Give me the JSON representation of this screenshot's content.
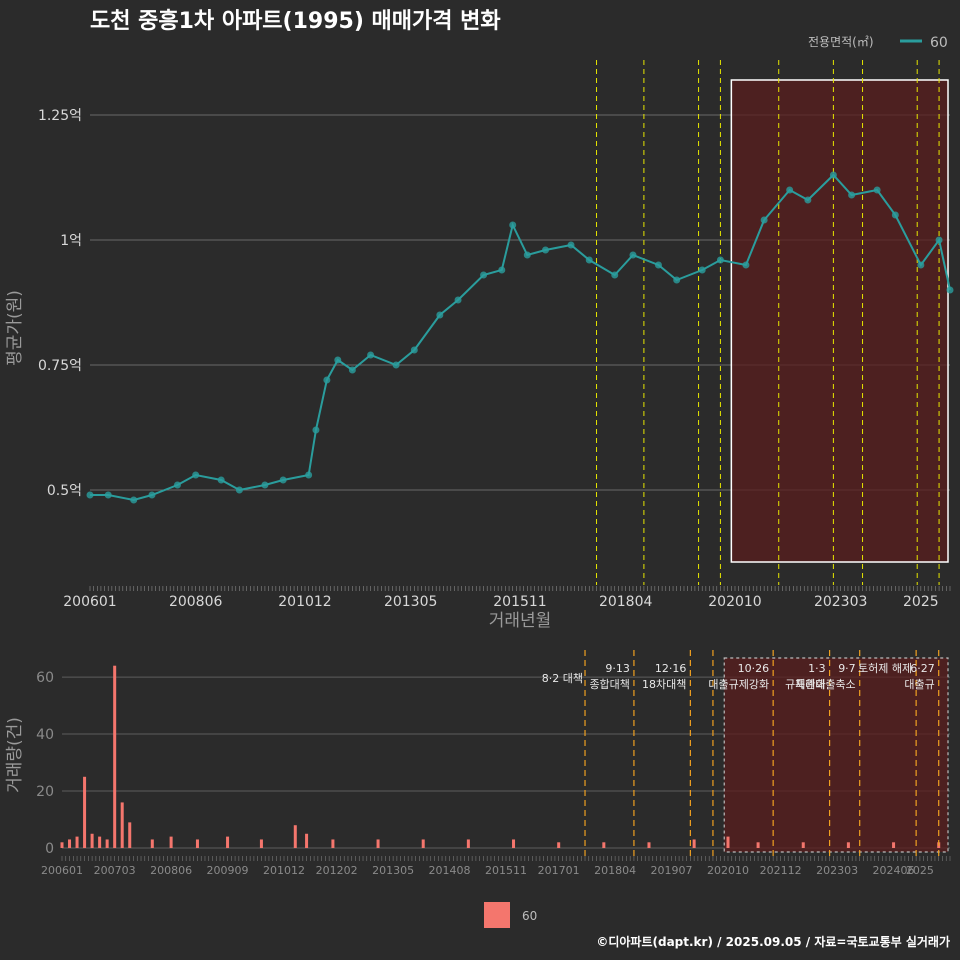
{
  "title": "도천 중흥1차 아파트(1995) 매매가격 변화",
  "legend_top": {
    "title": "전용면적(㎡)",
    "item": "60",
    "color": "#2a9d9d"
  },
  "legend_bottom": {
    "item": "60",
    "color": "#f4766d"
  },
  "footer": "©디아파트(dapt.kr) / 2025.09.05 / 자료=국토교통부 실거래가",
  "colors": {
    "price": "#2a9d9d",
    "volume": "#f4766d",
    "policy_line_top": "#e6e600",
    "policy_line_bottom": "#f0a020",
    "highlight_fill": "#5a1e1e",
    "marker": "#e03030"
  },
  "chart_data": [
    {
      "type": "line",
      "title": "도천 중흥1차 아파트(1995) 매매가격 변화",
      "xlabel": "거래년월",
      "ylabel": "평균가(원)",
      "x_tick_labels": [
        "200601",
        "200806",
        "201012",
        "201305",
        "201511",
        "201804",
        "202010",
        "202303",
        "2025"
      ],
      "y_tick_labels": [
        "0.5억",
        "0.75억",
        "1억",
        "1.25억"
      ],
      "y_ticks": [
        50000000,
        75000000,
        100000000,
        125000000
      ],
      "ylim": [
        32000000,
        132000000
      ],
      "xlim": [
        "2006-01",
        "2025-09"
      ],
      "grid": true,
      "legend": "top-right",
      "policy_dates": [
        "2017-08",
        "2018-09",
        "2019-12",
        "2020-06",
        "2021-10",
        "2023-01",
        "2023-09",
        "2024-12",
        "2025-06"
      ],
      "highlight": {
        "from": "2020-09",
        "to": "2025-09"
      },
      "series": [
        {
          "name": "60",
          "x": [
            "2006-01",
            "2006-06",
            "2007-01",
            "2007-06",
            "2008-01",
            "2008-06",
            "2009-01",
            "2009-06",
            "2010-01",
            "2010-06",
            "2011-01",
            "2011-03",
            "2011-06",
            "2011-09",
            "2012-01",
            "2012-06",
            "2013-01",
            "2013-06",
            "2014-01",
            "2014-06",
            "2015-01",
            "2015-06",
            "2015-09",
            "2016-01",
            "2016-06",
            "2017-01",
            "2017-06",
            "2018-01",
            "2018-06",
            "2019-01",
            "2019-06",
            "2020-01",
            "2020-06",
            "2021-01",
            "2021-06",
            "2022-01",
            "2022-06",
            "2023-01",
            "2023-06",
            "2024-01",
            "2024-06",
            "2025-01",
            "2025-06",
            "2025-09"
          ],
          "y": [
            49000000,
            49000000,
            48000000,
            49000000,
            51000000,
            53000000,
            52000000,
            50000000,
            51000000,
            52000000,
            53000000,
            62000000,
            72000000,
            76000000,
            74000000,
            77000000,
            75000000,
            78000000,
            85000000,
            88000000,
            93000000,
            94000000,
            103000000,
            97000000,
            98000000,
            99000000,
            96000000,
            93000000,
            97000000,
            95000000,
            92000000,
            94000000,
            96000000,
            95000000,
            104000000,
            110000000,
            108000000,
            113000000,
            109000000,
            110000000,
            105000000,
            95000000,
            100000000,
            90000000
          ]
        }
      ]
    },
    {
      "type": "bar",
      "xlabel": "",
      "ylabel": "거래량(건)",
      "x_tick_labels": [
        "200601",
        "200703",
        "200806",
        "200909",
        "201012",
        "201202",
        "201305",
        "201408",
        "201511",
        "201701",
        "201804",
        "201907",
        "202010",
        "202112",
        "202303",
        "202406",
        "2025"
      ],
      "y_tick_labels": [
        "0",
        "20",
        "40",
        "60"
      ],
      "ylim": [
        0,
        66
      ],
      "legend": "bottom",
      "annotations": [
        {
          "x": "2017-08",
          "text": "8·2 대책"
        },
        {
          "x": "2018-09",
          "text": "9·13"
        },
        {
          "x": "2018-09",
          "text": "종합대책"
        },
        {
          "x": "2019-12",
          "text": "12·16"
        },
        {
          "x": "2019-12",
          "text": "18차대책"
        },
        {
          "x": "2021-10",
          "text": "10·26"
        },
        {
          "x": "2021-10",
          "text": "대출규제강화"
        },
        {
          "x": "2023-01",
          "text": "1·3"
        },
        {
          "x": "2023-01",
          "text": "규제완화"
        },
        {
          "x": "2023-09",
          "text": "9·7"
        },
        {
          "x": "2023-09",
          "text": "특례대출축소"
        },
        {
          "x": "2024-12",
          "text": "토허제 해제"
        },
        {
          "x": "2025-06",
          "text": "6·27"
        },
        {
          "x": "2025-06",
          "text": "대출규"
        }
      ],
      "series": [
        {
          "name": "60",
          "x": [
            "2006-01",
            "2006-03",
            "2006-05",
            "2006-07",
            "2006-09",
            "2006-11",
            "2007-01",
            "2007-03",
            "2007-05",
            "2007-07",
            "2008-01",
            "2008-06",
            "2009-01",
            "2009-09",
            "2010-06",
            "2011-03",
            "2011-06",
            "2012-01",
            "2013-01",
            "2014-01",
            "2015-01",
            "2016-01",
            "2017-01",
            "2018-01",
            "2019-01",
            "2020-01",
            "2020-10",
            "2021-06",
            "2022-06",
            "2023-06",
            "2024-06",
            "2025-06"
          ],
          "y": [
            2,
            3,
            4,
            25,
            5,
            4,
            3,
            64,
            16,
            9,
            3,
            4,
            3,
            4,
            3,
            8,
            5,
            3,
            3,
            3,
            3,
            3,
            2,
            2,
            2,
            3,
            4,
            2,
            2,
            2,
            2,
            2
          ]
        }
      ]
    }
  ]
}
